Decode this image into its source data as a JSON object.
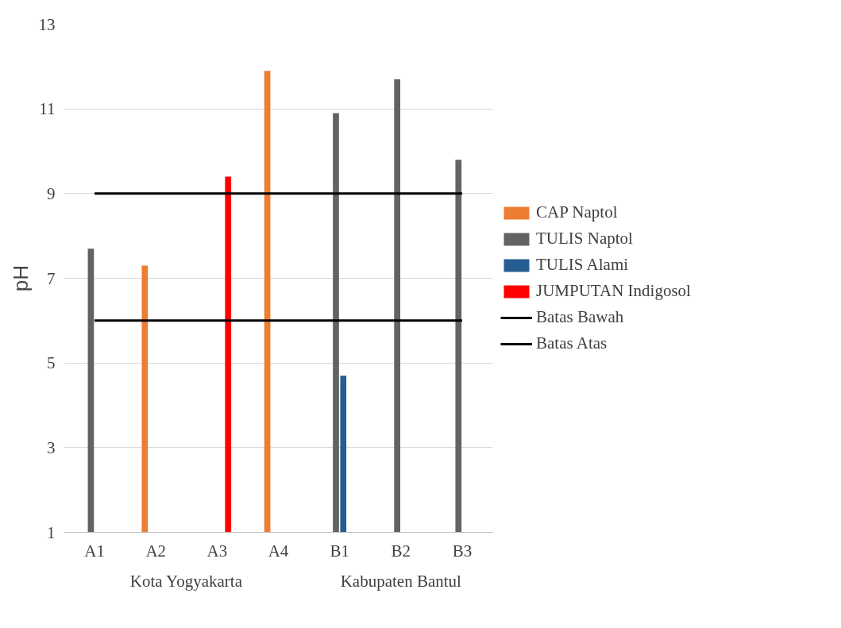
{
  "chart_data": {
    "type": "bar",
    "ylabel": "pH",
    "categories": [
      "A1",
      "A2",
      "A3",
      "A4",
      "B1",
      "B2",
      "B3"
    ],
    "series": [
      {
        "name": "CAP Naptol",
        "color": "#ed7d31",
        "values": [
          null,
          7.3,
          null,
          11.9,
          null,
          null,
          null
        ]
      },
      {
        "name": "TULIS Naptol",
        "color": "#636363",
        "values": [
          7.7,
          null,
          null,
          null,
          10.9,
          11.7,
          9.8
        ]
      },
      {
        "name": "TULIS Alami",
        "color": "#255e91",
        "values": [
          null,
          null,
          null,
          null,
          4.7,
          null,
          null
        ]
      },
      {
        "name": "JUMPUTAN Indigosol",
        "color": "#ff0000",
        "values": [
          null,
          null,
          9.4,
          null,
          null,
          null,
          null
        ]
      },
      {
        "name": "Batas Bawah",
        "type": "line",
        "color": "#000000",
        "values": [
          6,
          6,
          6,
          6,
          6,
          6,
          6
        ]
      },
      {
        "name": "Batas Atas",
        "type": "line",
        "color": "#000000",
        "values": [
          9,
          9,
          9,
          9,
          9,
          9,
          9
        ]
      }
    ],
    "ylim": [
      1,
      13
    ],
    "yticks": [
      1,
      3,
      5,
      7,
      9,
      11,
      13
    ],
    "grid": "y",
    "legend": "right",
    "line_style": "solid",
    "annotations": [
      "Kota Yogyakarta",
      "Kabupaten Bantul"
    ]
  }
}
